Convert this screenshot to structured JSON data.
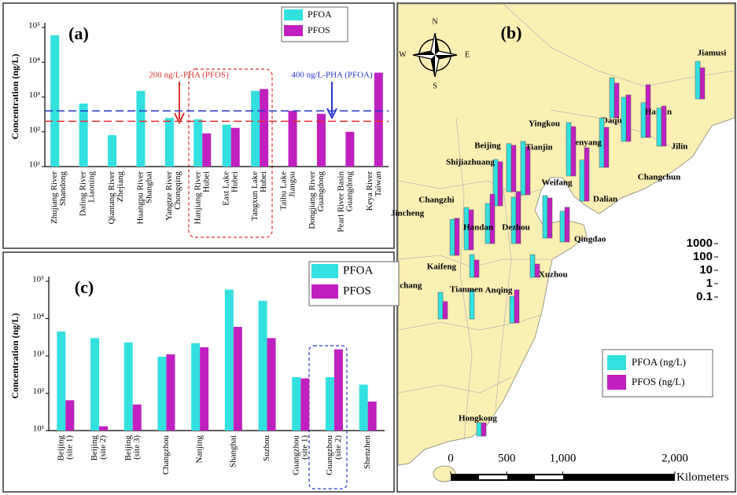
{
  "chart_data": [
    {
      "type": "bar",
      "panel_label": "(a)",
      "y_label": "Concentration (ng/L)",
      "log_scale": true,
      "legend": "upper right",
      "categories": [
        [
          "Zhujiang River",
          "Shandong"
        ],
        [
          "Daling River",
          "Liaoning"
        ],
        [
          "Qiantang River",
          "Zhejiang"
        ],
        [
          "Huangpu River",
          "Shanghai"
        ],
        [
          "Yangtze River",
          "Chongqing"
        ],
        [
          "Hanjiang River",
          "Hubei"
        ],
        [
          "East Lake",
          "Hubei"
        ],
        [
          "Tangxun Lake",
          "Hubei"
        ],
        [
          "Taihu Lake",
          "Jiangsu"
        ],
        [
          "Dongjiang River",
          "Guangdong"
        ],
        [
          "Pearl River Basin",
          "Guangdong"
        ],
        [
          "Keya River",
          "Taiwan"
        ]
      ],
      "series": [
        {
          "name": "PFOA",
          "color": "#33e0e0",
          "values": [
            60000,
            650,
            80,
            1500,
            250,
            230,
            160,
            1500,
            null,
            null,
            null,
            null
          ]
        },
        {
          "name": "PFOS",
          "color": "#c020c0",
          "values": [
            null,
            null,
            null,
            null,
            null,
            90,
            130,
            1700,
            400,
            330,
            100,
            5000
          ]
        }
      ],
      "ylim": [
        10,
        100000
      ],
      "yticks": [
        {
          "value": 10,
          "label": "10¹"
        },
        {
          "value": 100,
          "label": "10²"
        },
        {
          "value": 1000,
          "label": "10³"
        },
        {
          "value": 10000,
          "label": "10⁴"
        },
        {
          "value": 100000,
          "label": "10⁵"
        }
      ],
      "reference_lines": [
        {
          "value": 200,
          "label": "200 ng/L-PHA (PFOS)",
          "color": "#e03030"
        },
        {
          "value": 400,
          "label": "400 ng/L-PHA (PFOA)",
          "color": "#2838c8"
        }
      ]
    },
    {
      "type": "map",
      "panel_label": "(b)",
      "log_scale": true,
      "compass": {
        "n": "N",
        "s": "S",
        "e": "E",
        "w": "W"
      },
      "categories": [
        "Jiamusi",
        "Harbin",
        "Daqing",
        "Jilin",
        "Changchun",
        "Shenyang",
        "Yingkou",
        "Dalian",
        "Tianjin",
        "Beijing",
        "Shijiazhuang",
        "Weifang",
        "Qingdao",
        "Changzhi",
        "Jincheng",
        "Handan",
        "Dezhou",
        "Kaifeng",
        "Xuzhou",
        "Yichang",
        "Tianmen",
        "Anqing",
        "Hongkong"
      ],
      "series": [
        {
          "name": "PFOA (ng/L)",
          "color": "#33e0e0",
          "values": [
            66,
            40,
            100,
            70,
            200,
            500,
            1000,
            120,
            1000,
            400,
            300,
            150,
            20,
            150,
            50,
            100,
            300,
            5,
            5,
            10,
            15,
            10,
            1
          ]
        },
        {
          "name": "PFOS (ng/L)",
          "color": "#c020c0",
          "values": [
            22,
            900,
            40,
            100,
            300,
            100,
            500,
            1000,
            400,
            300,
            200,
            100,
            40,
            100,
            60,
            500,
            800,
            2,
            1,
            2,
            null,
            30,
            1
          ]
        }
      ],
      "ylim": [
        0.1,
        1000
      ],
      "yticks": [
        1000,
        100,
        10,
        1,
        0.1
      ],
      "scale_ticks": [
        0,
        500,
        {
          "value": 1000,
          "label": "1,000"
        },
        {
          "value": 2000,
          "label": "2,000"
        }
      ],
      "scale_unit": "Kilometers"
    },
    {
      "type": "bar",
      "panel_label": "(c)",
      "y_label": "Concentration (ng/L)",
      "log_scale": true,
      "legend": "upper right",
      "categories": [
        [
          "Beijing",
          "(site 1)"
        ],
        [
          "Beijing",
          "(site 2)"
        ],
        [
          "Beijing",
          "(site 3)"
        ],
        [
          "Changzhou"
        ],
        [
          "Nanjing"
        ],
        [
          "Shanghai"
        ],
        [
          "Suzhou"
        ],
        [
          "Guangzhou",
          "(site 1)"
        ],
        [
          "Guangzhou",
          "(site 2)"
        ],
        [
          "Shenzhen"
        ]
      ],
      "series": [
        {
          "name": "PFOA",
          "color": "#33e0e0",
          "values": [
            4500,
            3000,
            2300,
            950,
            2200,
            60000,
            30000,
            270,
            270,
            170
          ]
        },
        {
          "name": "PFOS",
          "color": "#c020c0",
          "values": [
            65,
            13,
            50,
            1100,
            1700,
            6000,
            3000,
            250,
            1500,
            60
          ]
        }
      ],
      "ylim": [
        10,
        100000
      ],
      "yticks": [
        {
          "value": 10,
          "label": "10¹"
        },
        {
          "value": 100,
          "label": "10²"
        },
        {
          "value": 1000,
          "label": "10³"
        },
        {
          "value": 10000,
          "label": "10⁴"
        },
        {
          "value": 100000,
          "label": "10⁵"
        }
      ]
    }
  ]
}
